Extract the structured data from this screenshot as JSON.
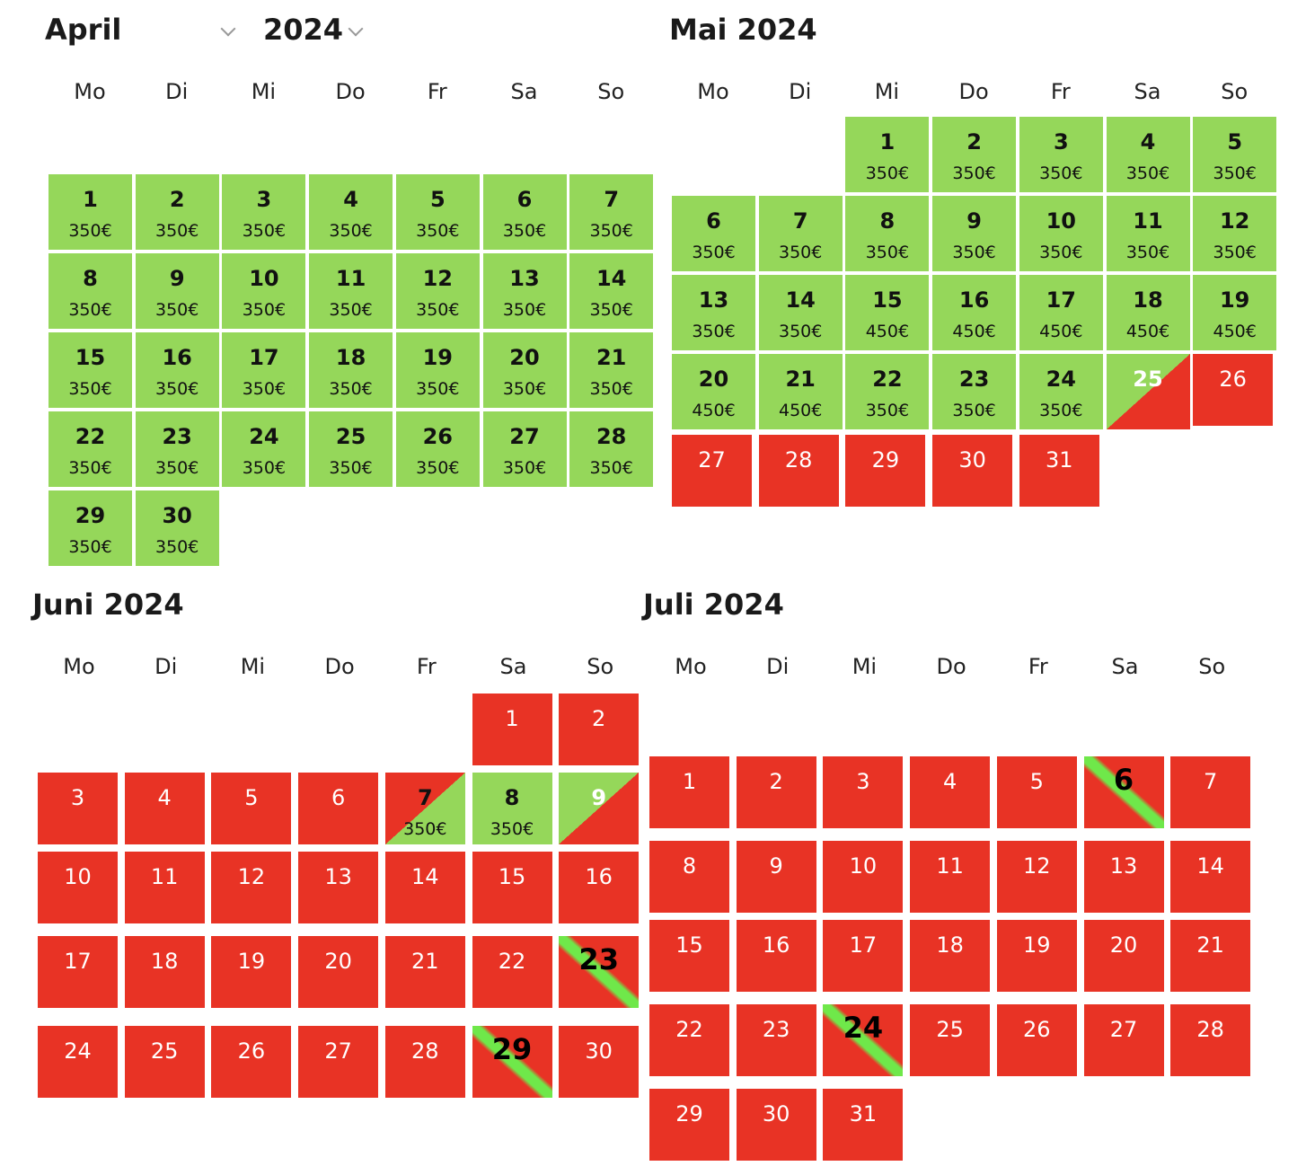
{
  "april": {
    "month_select": "April",
    "year_select": "2024",
    "weekdays": [
      "Mo",
      "Di",
      "Mi",
      "Do",
      "Fr",
      "Sa",
      "So"
    ],
    "days": [
      {
        "d": "1",
        "p": "350€",
        "s": "green"
      },
      {
        "d": "2",
        "p": "350€",
        "s": "green"
      },
      {
        "d": "3",
        "p": "350€",
        "s": "green"
      },
      {
        "d": "4",
        "p": "350€",
        "s": "green"
      },
      {
        "d": "5",
        "p": "350€",
        "s": "green"
      },
      {
        "d": "6",
        "p": "350€",
        "s": "green"
      },
      {
        "d": "7",
        "p": "350€",
        "s": "green"
      },
      {
        "d": "8",
        "p": "350€",
        "s": "green"
      },
      {
        "d": "9",
        "p": "350€",
        "s": "green"
      },
      {
        "d": "10",
        "p": "350€",
        "s": "green"
      },
      {
        "d": "11",
        "p": "350€",
        "s": "green"
      },
      {
        "d": "12",
        "p": "350€",
        "s": "green"
      },
      {
        "d": "13",
        "p": "350€",
        "s": "green"
      },
      {
        "d": "14",
        "p": "350€",
        "s": "green"
      },
      {
        "d": "15",
        "p": "350€",
        "s": "green"
      },
      {
        "d": "16",
        "p": "350€",
        "s": "green"
      },
      {
        "d": "17",
        "p": "350€",
        "s": "green"
      },
      {
        "d": "18",
        "p": "350€",
        "s": "green"
      },
      {
        "d": "19",
        "p": "350€",
        "s": "green"
      },
      {
        "d": "20",
        "p": "350€",
        "s": "green"
      },
      {
        "d": "21",
        "p": "350€",
        "s": "green"
      },
      {
        "d": "22",
        "p": "350€",
        "s": "green"
      },
      {
        "d": "23",
        "p": "350€",
        "s": "green"
      },
      {
        "d": "24",
        "p": "350€",
        "s": "green"
      },
      {
        "d": "25",
        "p": "350€",
        "s": "green"
      },
      {
        "d": "26",
        "p": "350€",
        "s": "green"
      },
      {
        "d": "27",
        "p": "350€",
        "s": "green"
      },
      {
        "d": "28",
        "p": "350€",
        "s": "green"
      },
      {
        "d": "29",
        "p": "350€",
        "s": "green"
      },
      {
        "d": "30",
        "p": "350€",
        "s": "green"
      }
    ]
  },
  "mai": {
    "title": "Mai 2024",
    "weekdays": [
      "Mo",
      "Di",
      "Mi",
      "Do",
      "Fr",
      "Sa",
      "So"
    ],
    "days": [
      {
        "d": "1",
        "p": "350€",
        "s": "green"
      },
      {
        "d": "2",
        "p": "350€",
        "s": "green"
      },
      {
        "d": "3",
        "p": "350€",
        "s": "green"
      },
      {
        "d": "4",
        "p": "350€",
        "s": "green"
      },
      {
        "d": "5",
        "p": "350€",
        "s": "green"
      },
      {
        "d": "6",
        "p": "350€",
        "s": "green"
      },
      {
        "d": "7",
        "p": "350€",
        "s": "green"
      },
      {
        "d": "8",
        "p": "350€",
        "s": "green"
      },
      {
        "d": "9",
        "p": "350€",
        "s": "green"
      },
      {
        "d": "10",
        "p": "350€",
        "s": "green"
      },
      {
        "d": "11",
        "p": "350€",
        "s": "green"
      },
      {
        "d": "12",
        "p": "350€",
        "s": "green"
      },
      {
        "d": "13",
        "p": "350€",
        "s": "green"
      },
      {
        "d": "14",
        "p": "350€",
        "s": "green"
      },
      {
        "d": "15",
        "p": "450€",
        "s": "green"
      },
      {
        "d": "16",
        "p": "450€",
        "s": "green"
      },
      {
        "d": "17",
        "p": "450€",
        "s": "green"
      },
      {
        "d": "18",
        "p": "450€",
        "s": "green"
      },
      {
        "d": "19",
        "p": "450€",
        "s": "green"
      },
      {
        "d": "20",
        "p": "450€",
        "s": "green"
      },
      {
        "d": "21",
        "p": "450€",
        "s": "green"
      },
      {
        "d": "22",
        "p": "350€",
        "s": "green"
      },
      {
        "d": "23",
        "p": "350€",
        "s": "green"
      },
      {
        "d": "24",
        "p": "350€",
        "s": "green"
      },
      {
        "d": "25",
        "p": "",
        "s": "split-gr"
      },
      {
        "d": "26",
        "p": "",
        "s": "red"
      },
      {
        "d": "27",
        "p": "",
        "s": "red"
      },
      {
        "d": "28",
        "p": "",
        "s": "red"
      },
      {
        "d": "29",
        "p": "",
        "s": "red"
      },
      {
        "d": "30",
        "p": "",
        "s": "red"
      },
      {
        "d": "31",
        "p": "",
        "s": "red"
      }
    ]
  },
  "juni": {
    "title": "Juni 2024",
    "weekdays": [
      "Mo",
      "Di",
      "Mi",
      "Do",
      "Fr",
      "Sa",
      "So"
    ],
    "days": [
      {
        "d": "1",
        "p": "",
        "s": "red"
      },
      {
        "d": "2",
        "p": "",
        "s": "red"
      },
      {
        "d": "3",
        "p": "",
        "s": "red"
      },
      {
        "d": "4",
        "p": "",
        "s": "red"
      },
      {
        "d": "5",
        "p": "",
        "s": "red"
      },
      {
        "d": "6",
        "p": "",
        "s": "red"
      },
      {
        "d": "7",
        "p": "350€",
        "s": "split-rg"
      },
      {
        "d": "8",
        "p": "350€",
        "s": "green"
      },
      {
        "d": "9",
        "p": "",
        "s": "split-gr"
      },
      {
        "d": "10",
        "p": "",
        "s": "red"
      },
      {
        "d": "11",
        "p": "",
        "s": "red"
      },
      {
        "d": "12",
        "p": "",
        "s": "red"
      },
      {
        "d": "13",
        "p": "",
        "s": "red"
      },
      {
        "d": "14",
        "p": "",
        "s": "red"
      },
      {
        "d": "15",
        "p": "",
        "s": "red"
      },
      {
        "d": "16",
        "p": "",
        "s": "red"
      },
      {
        "d": "17",
        "p": "",
        "s": "red"
      },
      {
        "d": "18",
        "p": "",
        "s": "red"
      },
      {
        "d": "19",
        "p": "",
        "s": "red"
      },
      {
        "d": "20",
        "p": "",
        "s": "red"
      },
      {
        "d": "21",
        "p": "",
        "s": "red"
      },
      {
        "d": "22",
        "p": "",
        "s": "red"
      },
      {
        "d": "23",
        "p": "",
        "s": "stripe"
      },
      {
        "d": "24",
        "p": "",
        "s": "red"
      },
      {
        "d": "25",
        "p": "",
        "s": "red"
      },
      {
        "d": "26",
        "p": "",
        "s": "red"
      },
      {
        "d": "27",
        "p": "",
        "s": "red"
      },
      {
        "d": "28",
        "p": "",
        "s": "red"
      },
      {
        "d": "29",
        "p": "",
        "s": "stripe"
      },
      {
        "d": "30",
        "p": "",
        "s": "red"
      }
    ]
  },
  "juli": {
    "title": "Juli 2024",
    "weekdays": [
      "Mo",
      "Di",
      "Mi",
      "Do",
      "Fr",
      "Sa",
      "So"
    ],
    "days": [
      {
        "d": "1",
        "p": "",
        "s": "red"
      },
      {
        "d": "2",
        "p": "",
        "s": "red"
      },
      {
        "d": "3",
        "p": "",
        "s": "red"
      },
      {
        "d": "4",
        "p": "",
        "s": "red"
      },
      {
        "d": "5",
        "p": "",
        "s": "red"
      },
      {
        "d": "6",
        "p": "",
        "s": "stripe"
      },
      {
        "d": "7",
        "p": "",
        "s": "red"
      },
      {
        "d": "8",
        "p": "",
        "s": "red"
      },
      {
        "d": "9",
        "p": "",
        "s": "red"
      },
      {
        "d": "10",
        "p": "",
        "s": "red"
      },
      {
        "d": "11",
        "p": "",
        "s": "red"
      },
      {
        "d": "12",
        "p": "",
        "s": "red"
      },
      {
        "d": "13",
        "p": "",
        "s": "red"
      },
      {
        "d": "14",
        "p": "",
        "s": "red"
      },
      {
        "d": "15",
        "p": "",
        "s": "red"
      },
      {
        "d": "16",
        "p": "",
        "s": "red"
      },
      {
        "d": "17",
        "p": "",
        "s": "red"
      },
      {
        "d": "18",
        "p": "",
        "s": "red"
      },
      {
        "d": "19",
        "p": "",
        "s": "red"
      },
      {
        "d": "20",
        "p": "",
        "s": "red"
      },
      {
        "d": "21",
        "p": "",
        "s": "red"
      },
      {
        "d": "22",
        "p": "",
        "s": "red"
      },
      {
        "d": "23",
        "p": "",
        "s": "red"
      },
      {
        "d": "24",
        "p": "",
        "s": "stripe"
      },
      {
        "d": "25",
        "p": "",
        "s": "red"
      },
      {
        "d": "26",
        "p": "",
        "s": "red"
      },
      {
        "d": "27",
        "p": "",
        "s": "red"
      },
      {
        "d": "28",
        "p": "",
        "s": "red"
      },
      {
        "d": "29",
        "p": "",
        "s": "red"
      },
      {
        "d": "30",
        "p": "",
        "s": "red"
      },
      {
        "d": "31",
        "p": "",
        "s": "red"
      }
    ]
  },
  "colors": {
    "available": "#95d75a",
    "booked": "#e83325",
    "stripe": "#6fe84a"
  }
}
